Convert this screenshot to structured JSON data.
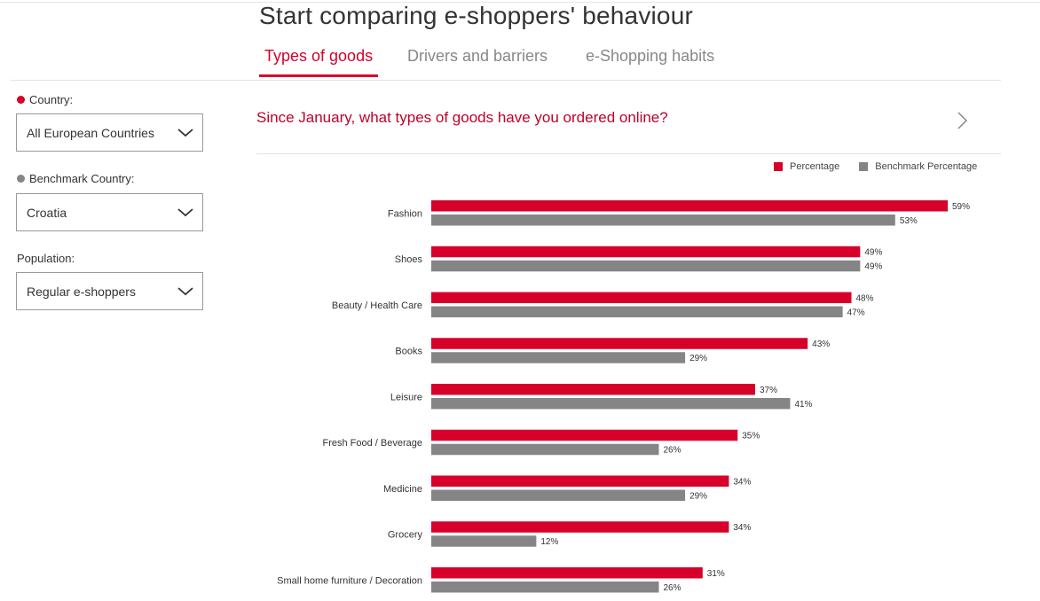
{
  "header": {
    "title": "Start comparing e-shoppers' behaviour"
  },
  "tabs": [
    {
      "label": "Types of goods",
      "active": true
    },
    {
      "label": "Drivers and barriers",
      "active": false
    },
    {
      "label": "e-Shopping habits",
      "active": false
    }
  ],
  "filters": {
    "country": {
      "label": "Country:",
      "value": "All European Countries",
      "dot_color": "#d6002a"
    },
    "benchmark": {
      "label": "Benchmark Country:",
      "value": "Croatia",
      "dot_color": "#858585"
    },
    "population": {
      "label": "Population:",
      "value": "Regular e-shoppers"
    }
  },
  "question": "Since January, what types of goods have you ordered online?",
  "colors": {
    "primary": "#d6002a",
    "benchmark": "#858585"
  },
  "icons": {
    "dropdown": "chevron-down-icon",
    "next": "chevron-right-icon"
  },
  "chart_data": {
    "type": "bar",
    "orientation": "horizontal",
    "categories": [
      "Fashion",
      "Shoes",
      "Beauty / Health Care",
      "Books",
      "Leisure",
      "Fresh Food / Beverage",
      "Medicine",
      "Grocery",
      "Small home furniture / Decoration"
    ],
    "series": [
      {
        "name": "Percentage",
        "color": "#d6002a",
        "values": [
          59,
          49,
          48,
          43,
          37,
          35,
          34,
          34,
          31
        ]
      },
      {
        "name": "Benchmark Percentage",
        "color": "#858585",
        "values": [
          53,
          49,
          47,
          29,
          41,
          26,
          29,
          12,
          26
        ]
      }
    ],
    "value_suffix": "%",
    "xlim": [
      0,
      60
    ],
    "legend_position": "top-right",
    "grid": false
  }
}
